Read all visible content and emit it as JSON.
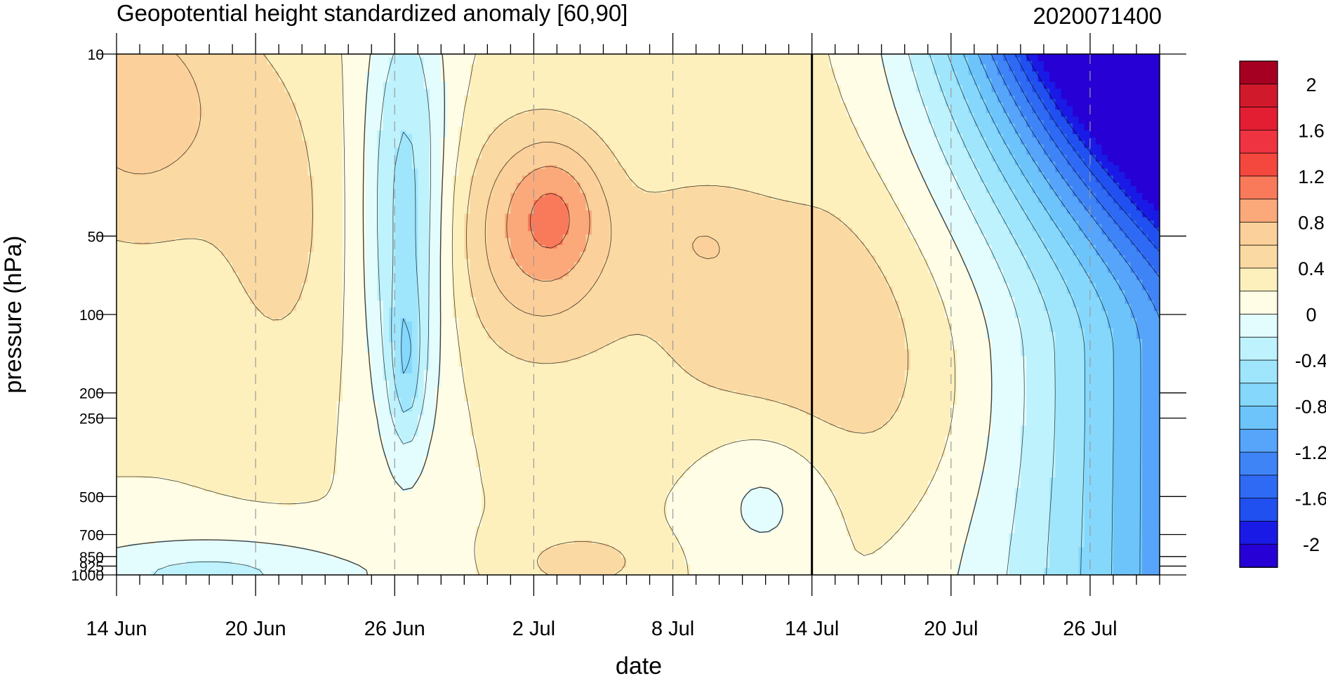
{
  "chart_data": {
    "type": "heatmap",
    "title": "Geopotential height standardized anomaly [60,90]",
    "title_right": "2020071400",
    "xlabel": "date",
    "ylabel": "pressure (hPa)",
    "x_ticks": [
      "14 Jun",
      "20 Jun",
      "26 Jun",
      "2 Jul",
      "8 Jul",
      "14 Jul",
      "20 Jul",
      "26 Jul"
    ],
    "x_tick_dates": [
      "2020-06-14",
      "2020-06-20",
      "2020-06-26",
      "2020-07-02",
      "2020-07-08",
      "2020-07-14",
      "2020-07-20",
      "2020-07-26"
    ],
    "xlim": [
      "2020-06-14",
      "2020-07-29"
    ],
    "y_ticks": [
      10,
      50,
      100,
      200,
      250,
      500,
      700,
      850,
      925,
      1000
    ],
    "y_tick_labels": [
      "10",
      "50",
      "100",
      "200",
      "250",
      "500",
      "700",
      "850",
      "925",
      "1000"
    ],
    "ylim": [
      1000,
      10
    ],
    "y_scale": "log",
    "analysis_marker_date": "2020-07-14",
    "colorbar": {
      "ticks": [
        "2",
        "1.6",
        "1.2",
        "0.8",
        "0.4",
        "0",
        "-0.4",
        "-0.8",
        "-1.2",
        "-1.6",
        "-2"
      ],
      "levels": [
        -2.2,
        -2,
        -1.8,
        -1.6,
        -1.4,
        -1.2,
        -1,
        -0.8,
        -0.6,
        -0.4,
        -0.2,
        0,
        0.2,
        0.4,
        0.6,
        0.8,
        1,
        1.2,
        1.4,
        1.6,
        1.8,
        2,
        2.2
      ],
      "colors": [
        "#2600d4",
        "#1a1ae6",
        "#2050f0",
        "#2f6af5",
        "#3f84f7",
        "#56a5fa",
        "#6cc4fb",
        "#85d8fc",
        "#9fe6fd",
        "#bef2fd",
        "#e3fcfd",
        "#fffde5",
        "#fdf0bd",
        "#fbd9a2",
        "#fbd09a",
        "#fba97a",
        "#f87a5a",
        "#f4473d",
        "#ef3340",
        "#e41e32",
        "#d1192c",
        "#a50021"
      ]
    },
    "regions": [
      {
        "level": 0.2,
        "color": "#fdf0bd",
        "points": [
          [
            "2020-06-14",
            10
          ],
          [
            "2020-06-17",
            10
          ],
          [
            "2020-06-17",
            500
          ],
          [
            "2020-06-14",
            500
          ]
        ]
      },
      {
        "level": 0.4,
        "color": "#fbd9a2",
        "points": [
          [
            "2020-06-14",
            10
          ],
          [
            "2020-06-22",
            10
          ],
          [
            "2020-06-22",
            120
          ],
          [
            "2020-06-14",
            120
          ]
        ]
      },
      {
        "level": 0.6,
        "color": "#fbd09a",
        "points": [
          [
            "2020-06-14",
            30
          ],
          [
            "2020-06-16",
            30
          ],
          [
            "2020-06-16",
            80
          ],
          [
            "2020-06-14",
            80
          ]
        ]
      }
    ]
  }
}
